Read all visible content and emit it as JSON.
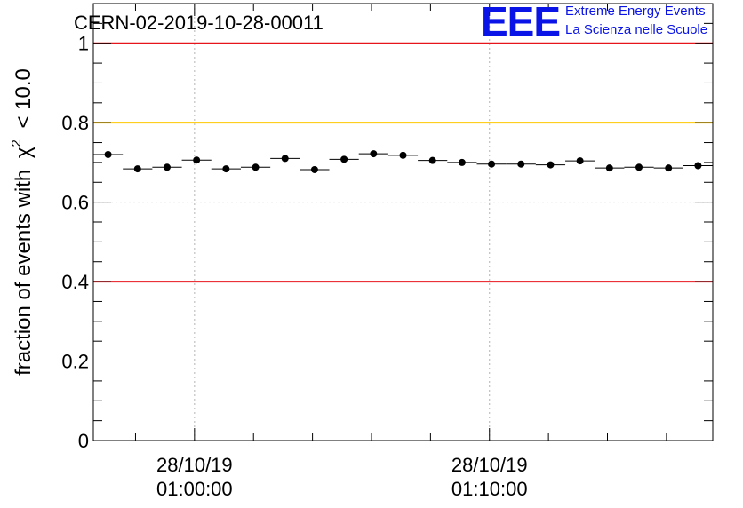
{
  "chart_data": {
    "type": "scatter",
    "title": "CERN-02-2019-10-28-00011",
    "xlabel": "",
    "ylabel": "fraction of events with",
    "ylabel_symbol": "χ",
    "ylabel_exponent": "2",
    "ylabel_threshold": "< 10.0",
    "x_unit": "minutes after 28/10/19 00:43:00",
    "xlim": [
      0,
      21
    ],
    "ylim": [
      0,
      1.1
    ],
    "yticks": [
      0,
      0.2,
      0.4,
      0.6,
      0.8,
      1
    ],
    "ytick_labels": [
      "0",
      "0.2",
      "0.4",
      "0.6",
      "0.8",
      "1"
    ],
    "xticks": [
      {
        "x": 3.43,
        "date": "28/10/19",
        "time": "01:00:00"
      },
      {
        "x": 13.43,
        "date": "28/10/19",
        "time": "01:10:00"
      }
    ],
    "grid": true,
    "reference_lines": [
      {
        "y": 1.0,
        "color": "#e8141b"
      },
      {
        "y": 0.8,
        "color": "#ffc800"
      },
      {
        "y": 0.4,
        "color": "#e8141b"
      }
    ],
    "series": [
      {
        "name": "fraction",
        "color": "#000000",
        "x": [
          0.5,
          1.5,
          2.5,
          3.5,
          4.5,
          5.5,
          6.5,
          7.5,
          8.5,
          9.5,
          10.5,
          11.5,
          12.5,
          13.5,
          14.5,
          15.5,
          16.5,
          17.5,
          18.5,
          19.5,
          20.5
        ],
        "x_halfwidth": 0.5,
        "values": [
          0.72,
          0.684,
          0.688,
          0.706,
          0.684,
          0.688,
          0.71,
          0.682,
          0.708,
          0.722,
          0.718,
          0.705,
          0.7,
          0.696,
          0.696,
          0.694,
          0.704,
          0.686,
          0.688,
          0.686,
          0.692
        ]
      }
    ]
  },
  "logo": {
    "mark": "EEE",
    "line1": "Extreme Energy Events",
    "line2": "La Scienza nelle Scuole",
    "color": "#0a14e6"
  }
}
